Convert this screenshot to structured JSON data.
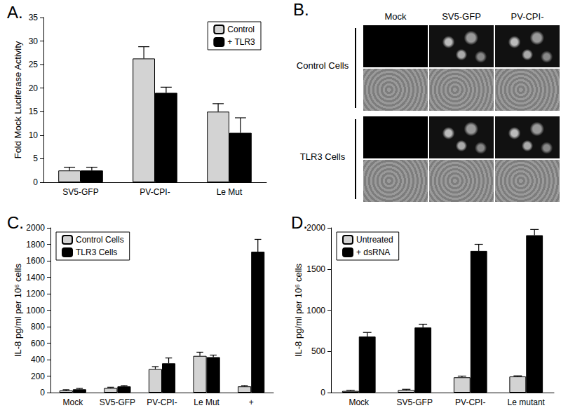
{
  "chart_data": [
    {
      "type": "bar",
      "title": "A.",
      "y_label": "Fold Mock Luciferase Activity",
      "categories": [
        "SV5-GFP",
        "PV-CPI-",
        "Le Mut"
      ],
      "series": [
        {
          "name": "Control",
          "color": "#d3d3d3",
          "values": [
            2.5,
            26.3,
            15
          ],
          "errors": [
            0.7,
            2.5,
            1.7
          ]
        },
        {
          "name": "+ TLR3",
          "color": "#000000",
          "values": [
            2.5,
            19,
            10.5
          ],
          "errors": [
            0.7,
            1.2,
            3.2
          ]
        }
      ],
      "ylim": [
        0,
        35
      ],
      "yticks": [
        0,
        5,
        10,
        15,
        20,
        25,
        30,
        35
      ],
      "grid": false,
      "legend": "top-right"
    },
    {
      "type": "bar",
      "title": "C.",
      "y_label": "IL-8 pg/ml per 10⁶ cells",
      "categories": [
        "Mock",
        "SV5-GFP",
        "PV-CPI-",
        "Le Mut",
        "+"
      ],
      "series": [
        {
          "name": "Control Cells",
          "color": "#d3d3d3",
          "values": [
            25,
            55,
            285,
            445,
            75
          ],
          "errors": [
            10,
            10,
            30,
            45,
            10
          ]
        },
        {
          "name": "TLR3 Cells",
          "color": "#000000",
          "values": [
            40,
            75,
            355,
            430,
            1710
          ],
          "errors": [
            10,
            10,
            65,
            25,
            150
          ]
        }
      ],
      "ylim": [
        0,
        2000
      ],
      "yticks": [
        0,
        200,
        400,
        600,
        800,
        1000,
        1200,
        1400,
        1600,
        1800,
        2000
      ],
      "grid": false,
      "legend": "top-left"
    },
    {
      "type": "bar",
      "title": "D.",
      "y_label": "IL-8 pg/ml per 10⁶ cells",
      "categories": [
        "Mock",
        "SV5-GFP",
        "PV-CPI-",
        "Le mutant"
      ],
      "series": [
        {
          "name": "Untreated",
          "color": "#d3d3d3",
          "values": [
            20,
            30,
            185,
            195
          ],
          "errors": [
            8,
            10,
            15,
            8
          ]
        },
        {
          "name": "+ dsRNA",
          "color": "#000000",
          "values": [
            680,
            790,
            1720,
            1910
          ],
          "errors": [
            50,
            40,
            80,
            70
          ]
        }
      ],
      "ylim": [
        0,
        2000
      ],
      "yticks": [
        0,
        500,
        1000,
        1500,
        2000
      ],
      "grid": false,
      "legend": "top-left"
    }
  ],
  "image_panel": {
    "title": "B.",
    "columns": [
      "Mock",
      "SV5-GFP",
      "PV-CPI-"
    ],
    "rows": [
      "Control Cells",
      "TLR3 Cells"
    ]
  }
}
